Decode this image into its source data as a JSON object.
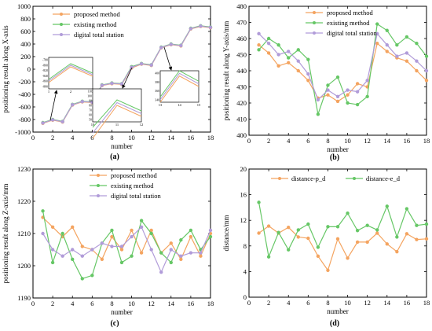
{
  "chart_data": [
    {
      "type": "line",
      "panel_label": "(a)",
      "xlabel": "number",
      "ylabel": "positioning result along X-axis",
      "xlim": [
        0,
        18
      ],
      "ylim": [
        -1000,
        1000
      ],
      "xticks": [
        0,
        2,
        4,
        6,
        8,
        10,
        12,
        14,
        16,
        18
      ],
      "yticks": [
        -1000,
        -800,
        -600,
        -400,
        -200,
        0,
        200,
        400,
        600,
        800,
        1000
      ],
      "legend_position": "top-left",
      "x": [
        1,
        2,
        3,
        4,
        5,
        6,
        7,
        8,
        9,
        10,
        11,
        12,
        13,
        14,
        15,
        16,
        17,
        18
      ],
      "series": [
        {
          "name": "proposed method",
          "color": "#f4a460",
          "marker": "circle",
          "values": [
            -860,
            -810,
            -840,
            -570,
            -520,
            -530,
            -260,
            -230,
            -240,
            20,
            80,
            60,
            340,
            390,
            370,
            640,
            680,
            660
          ]
        },
        {
          "name": "existing method",
          "color": "#66c766",
          "marker": "circle",
          "values": [
            -850,
            -800,
            -830,
            -560,
            -510,
            -520,
            -250,
            -220,
            -230,
            40,
            90,
            70,
            350,
            400,
            380,
            650,
            690,
            670
          ]
        },
        {
          "name": "digital total station",
          "color": "#b19cd9",
          "marker": "circle",
          "values": [
            -855,
            -805,
            -835,
            -565,
            -515,
            -525,
            -255,
            -225,
            -235,
            30,
            85,
            65,
            345,
            395,
            375,
            645,
            685,
            665
          ]
        }
      ],
      "insets": [
        {
          "xticks": [
            "1",
            "2",
            "3"
          ],
          "yticks": [
            "-780",
            "-800",
            "-820",
            "-840",
            "-860",
            "-880"
          ]
        },
        {
          "xticks": [
            "10",
            "11",
            "12"
          ],
          "yticks": [
            "110",
            "100",
            "90",
            "80",
            "70",
            "60",
            "50"
          ]
        },
        {
          "xticks": [
            "13",
            "14",
            "15"
          ],
          "yticks": [
            "400",
            "380",
            "360",
            "340"
          ]
        }
      ]
    },
    {
      "type": "line",
      "panel_label": "(b)",
      "xlabel": "number",
      "ylabel": "positioning result along Y-axis/mm",
      "xlim": [
        0,
        18
      ],
      "ylim": [
        400,
        480
      ],
      "xticks": [
        0,
        2,
        4,
        6,
        8,
        10,
        12,
        14,
        16,
        18
      ],
      "yticks": [
        400,
        410,
        420,
        430,
        440,
        450,
        460,
        470,
        480
      ],
      "legend_position": "top-right",
      "x": [
        1,
        2,
        3,
        4,
        5,
        6,
        7,
        8,
        9,
        10,
        11,
        12,
        13,
        14,
        15,
        16,
        17,
        18
      ],
      "series": [
        {
          "name": "proposed method",
          "color": "#f4a460",
          "marker": "circle",
          "values": [
            456,
            451,
            443,
            445,
            440,
            434,
            423,
            425,
            421,
            425,
            432,
            430,
            457,
            452,
            448,
            446,
            440,
            434
          ]
        },
        {
          "name": "existing method",
          "color": "#66c766",
          "marker": "circle",
          "values": [
            453,
            460,
            456,
            448,
            453,
            447,
            413,
            431,
            436,
            420,
            419,
            424,
            469,
            465,
            456,
            461,
            457,
            449
          ]
        },
        {
          "name": "digital total station",
          "color": "#b19cd9",
          "marker": "circle",
          "values": [
            463,
            457,
            450,
            452,
            446,
            438,
            422,
            428,
            424,
            428,
            427,
            434,
            463,
            456,
            449,
            451,
            446,
            440
          ]
        }
      ]
    },
    {
      "type": "line",
      "panel_label": "(c)",
      "xlabel": "number",
      "ylabel": "positioning result along Z-axis/mm",
      "xlim": [
        0,
        18
      ],
      "ylim": [
        1190,
        1230
      ],
      "xticks": [
        0,
        2,
        4,
        6,
        8,
        10,
        12,
        14,
        16,
        18
      ],
      "yticks": [
        1190,
        1200,
        1210,
        1220,
        1230
      ],
      "legend_position": "top-right",
      "x": [
        1,
        2,
        3,
        4,
        5,
        6,
        7,
        8,
        9,
        10,
        11,
        12,
        13,
        14,
        15,
        16,
        17,
        18
      ],
      "series": [
        {
          "name": "proposed method",
          "color": "#f4a460",
          "marker": "circle",
          "values": [
            1215,
            1212,
            1209,
            1212,
            1206,
            1205,
            1202,
            1209,
            1205,
            1211,
            1204,
            1211,
            1204,
            1207,
            1202,
            1209,
            1203,
            1210
          ]
        },
        {
          "name": "existing method",
          "color": "#66c766",
          "marker": "circle",
          "values": [
            1217,
            1201,
            1210,
            1202,
            1196,
            1197,
            1207,
            1211,
            1201,
            1203,
            1214,
            1210,
            1204,
            1201,
            1208,
            1211,
            1205,
            1209
          ]
        },
        {
          "name": "digital total station",
          "color": "#b19cd9",
          "marker": "circle",
          "values": [
            1210,
            1205,
            1203,
            1205,
            1203,
            1205,
            1207,
            1206,
            1206,
            1209,
            1212,
            1205,
            1198,
            1205,
            1203,
            1204,
            1204,
            1211
          ]
        }
      ]
    },
    {
      "type": "line",
      "panel_label": "(d)",
      "xlabel": "number",
      "ylabel": "distance/mm",
      "xlim": [
        0,
        18
      ],
      "ylim": [
        0,
        20
      ],
      "xticks": [
        0,
        2,
        4,
        6,
        8,
        10,
        12,
        14,
        16,
        18
      ],
      "yticks": [
        0,
        4,
        8,
        12,
        16,
        20
      ],
      "legend_position": "top",
      "x": [
        1,
        2,
        3,
        4,
        5,
        6,
        7,
        8,
        9,
        10,
        11,
        12,
        13,
        14,
        15,
        16,
        17,
        18
      ],
      "series": [
        {
          "name": "distance-p_d",
          "color": "#f4a460",
          "marker": "circle",
          "values": [
            10.0,
            11.1,
            10.0,
            10.9,
            9.4,
            9.2,
            6.4,
            4.2,
            9.1,
            6.1,
            8.6,
            8.6,
            10.0,
            8.3,
            7.1,
            9.9,
            9.0,
            9.1
          ]
        },
        {
          "name": "distance-e_d",
          "color": "#66c766",
          "marker": "circle",
          "values": [
            14.8,
            6.3,
            10.1,
            7.4,
            10.5,
            11.4,
            7.8,
            11.0,
            11.0,
            13.1,
            10.4,
            11.2,
            10.5,
            14.2,
            9.4,
            13.8,
            11.2,
            11.4
          ]
        }
      ]
    }
  ]
}
